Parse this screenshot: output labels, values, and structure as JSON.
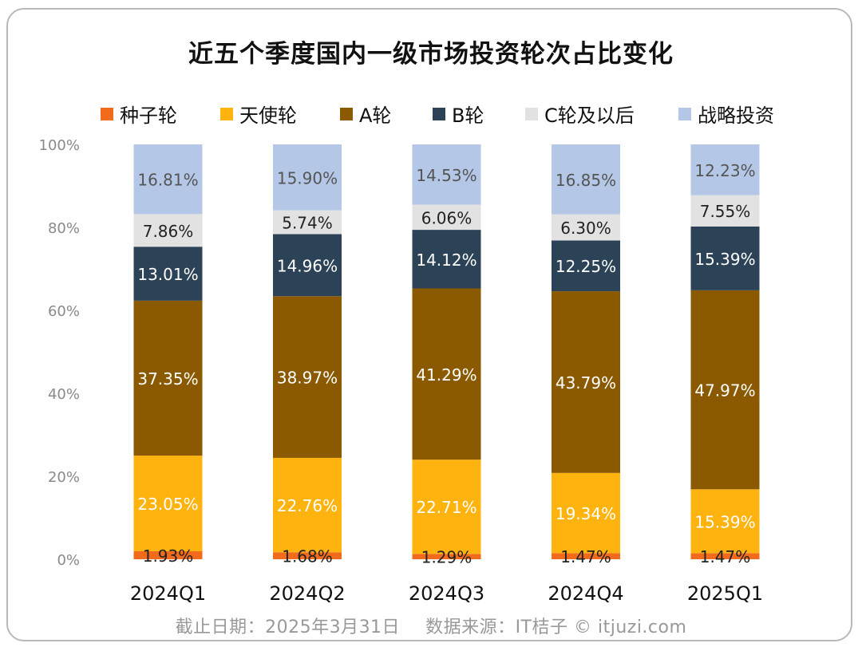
{
  "title": "近五个季度国内一级市场投资轮次占比变化",
  "footer": {
    "date": "截止日期：2025年3月31日",
    "source": "数据来源：IT桔子 © itjuzi.com"
  },
  "chart_data": {
    "type": "bar",
    "stacked": true,
    "title": "近五个季度国内一级市场投资轮次占比变化",
    "categories": [
      "2024Q1",
      "2024Q2",
      "2024Q3",
      "2024Q4",
      "2025Q1"
    ],
    "y_ticks": [
      "0%",
      "20%",
      "40%",
      "60%",
      "80%",
      "100%"
    ],
    "ylim": [
      0,
      100
    ],
    "legend_position": "top",
    "series": [
      {
        "name": "种子轮",
        "color": "#f26a1b",
        "label_color": "#222222",
        "values": [
          1.93,
          1.68,
          1.29,
          1.47,
          1.47
        ],
        "labels": [
          "1.93%",
          "1.68%",
          "1.29%",
          "1.47%",
          "1.47%"
        ]
      },
      {
        "name": "天使轮",
        "color": "#ffb30f",
        "label_color": "#ffffff",
        "values": [
          23.05,
          22.76,
          22.71,
          19.34,
          15.39
        ],
        "labels": [
          "23.05%",
          "22.76%",
          "22.71%",
          "19.34%",
          "15.39%"
        ]
      },
      {
        "name": "A轮",
        "color": "#8b5a00",
        "label_color": "#ffffff",
        "values": [
          37.35,
          38.97,
          41.29,
          43.79,
          47.97
        ],
        "labels": [
          "37.35%",
          "38.97%",
          "41.29%",
          "43.79%",
          "47.97%"
        ]
      },
      {
        "name": "B轮",
        "color": "#2c4357",
        "label_color": "#ffffff",
        "values": [
          13.01,
          14.96,
          14.12,
          12.25,
          15.39
        ],
        "labels": [
          "13.01%",
          "14.96%",
          "14.12%",
          "12.25%",
          "15.39%"
        ]
      },
      {
        "name": "C轮及以后",
        "color": "#e2e2e2",
        "label_color": "#222222",
        "values": [
          7.86,
          5.74,
          6.06,
          6.3,
          7.55
        ],
        "labels": [
          "7.86%",
          "5.74%",
          "6.06%",
          "6.30%",
          "7.55%"
        ]
      },
      {
        "name": "战略投资",
        "color": "#b4c7e7",
        "label_color": "#555555",
        "values": [
          16.81,
          15.9,
          14.53,
          16.85,
          12.23
        ],
        "labels": [
          "16.81%",
          "15.90%",
          "14.53%",
          "16.85%",
          "12.23%"
        ]
      }
    ]
  }
}
